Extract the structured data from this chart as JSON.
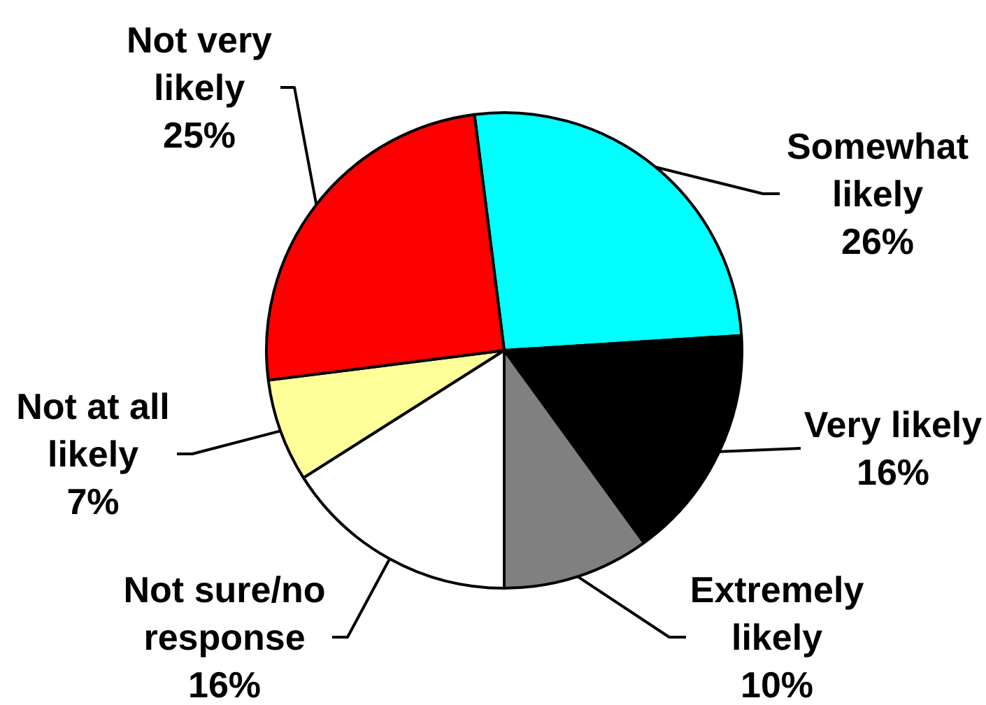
{
  "chart_data": {
    "type": "pie",
    "categories": [
      "Somewhat likely",
      "Very likely",
      "Extremely likely",
      "Not sure/no response",
      "Not at all likely",
      "Not very likely"
    ],
    "values": [
      26,
      16,
      10,
      16,
      7,
      25
    ],
    "value_labels": [
      "26%",
      "16%",
      "10%",
      "16%",
      "7%",
      "25%"
    ],
    "colors": [
      "#00ffff",
      "#000000",
      "#808080",
      "#ffffff",
      "#ffff99",
      "#ff0000"
    ]
  }
}
